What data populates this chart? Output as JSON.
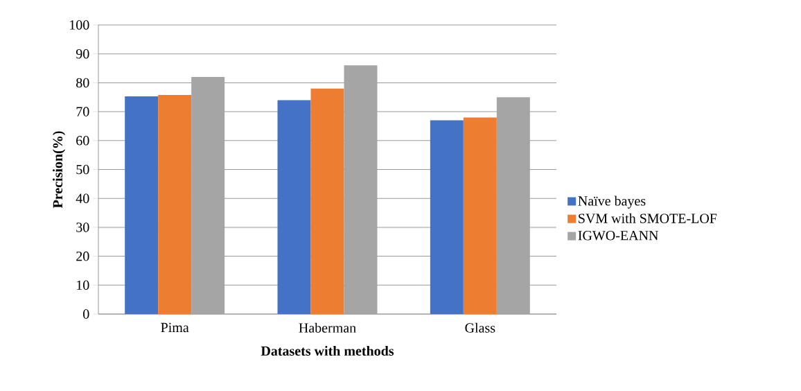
{
  "chart_data": {
    "type": "bar",
    "xlabel": "Datasets with methods",
    "ylabel": "Precision(%)",
    "categories": [
      "Pima",
      "Haberman",
      "Glass"
    ],
    "series": [
      {
        "name": "Naïve bayes",
        "color": "#4472c4",
        "values": [
          75.3,
          74,
          67
        ]
      },
      {
        "name": "SVM with SMOTE-LOF",
        "color": "#ed7d31",
        "values": [
          75.8,
          78,
          68
        ]
      },
      {
        "name": "IGWO-EANN",
        "color": "#a5a5a5",
        "values": [
          82,
          86,
          75
        ]
      }
    ],
    "ylim": [
      0,
      100
    ],
    "yticks": [
      0,
      10,
      20,
      30,
      40,
      50,
      60,
      70,
      80,
      90,
      100
    ],
    "grid": "y",
    "legend": "right"
  }
}
